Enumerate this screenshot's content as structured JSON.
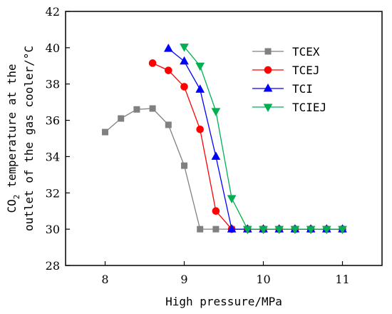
{
  "chart_data": {
    "type": "line",
    "xlabel": "High pressure/MPa",
    "ylabel_line1_prefix": "CO",
    "ylabel_line1_sub": "2",
    "ylabel_line1_suffix": " temperature at the",
    "ylabel_line2": "outlet of the gas cooler/°C",
    "xlim": [
      7.5,
      11.5
    ],
    "ylim": [
      28,
      42
    ],
    "xticks": [
      8,
      9,
      10,
      11
    ],
    "yticks": [
      28,
      30,
      32,
      34,
      36,
      38,
      40,
      42
    ],
    "legend_position": "top-right",
    "series": [
      {
        "name": "TCEX",
        "color": "#808080",
        "marker": "square",
        "x": [
          8.0,
          8.2,
          8.4,
          8.6,
          8.8,
          9.0,
          9.2,
          9.4,
          9.6,
          9.8,
          10.0,
          10.2,
          10.4,
          10.6,
          10.8,
          11.0
        ],
        "y": [
          35.35,
          36.1,
          36.6,
          36.65,
          35.75,
          33.5,
          30.0,
          30.0,
          30.0,
          30.0,
          30.0,
          30.0,
          30.0,
          30.0,
          30.0,
          30.0
        ]
      },
      {
        "name": "TCEJ",
        "color": "#ff0000",
        "marker": "circle",
        "x": [
          8.6,
          8.8,
          9.0,
          9.2,
          9.4,
          9.6,
          9.8,
          10.0,
          10.2,
          10.4,
          10.6,
          10.8,
          11.0
        ],
        "y": [
          39.15,
          38.75,
          37.85,
          35.5,
          31.0,
          30.0,
          30.0,
          30.0,
          30.0,
          30.0,
          30.0,
          30.0,
          30.0
        ]
      },
      {
        "name": "TCI",
        "color": "#0000ff",
        "marker": "triangle-up",
        "x": [
          8.8,
          9.0,
          9.2,
          9.4,
          9.6,
          9.8,
          10.0,
          10.2,
          10.4,
          10.6,
          10.8,
          11.0
        ],
        "y": [
          39.95,
          39.25,
          37.7,
          34.0,
          30.0,
          30.0,
          30.0,
          30.0,
          30.0,
          30.0,
          30.0,
          30.0
        ]
      },
      {
        "name": "TCIEJ",
        "color": "#00b050",
        "marker": "triangle-down",
        "x": [
          9.0,
          9.2,
          9.4,
          9.6,
          9.8,
          10.0,
          10.2,
          10.4,
          10.6,
          10.8,
          11.0
        ],
        "y": [
          40.05,
          39.0,
          36.5,
          31.7,
          30.0,
          30.0,
          30.0,
          30.0,
          30.0,
          30.0,
          30.0
        ]
      }
    ]
  }
}
